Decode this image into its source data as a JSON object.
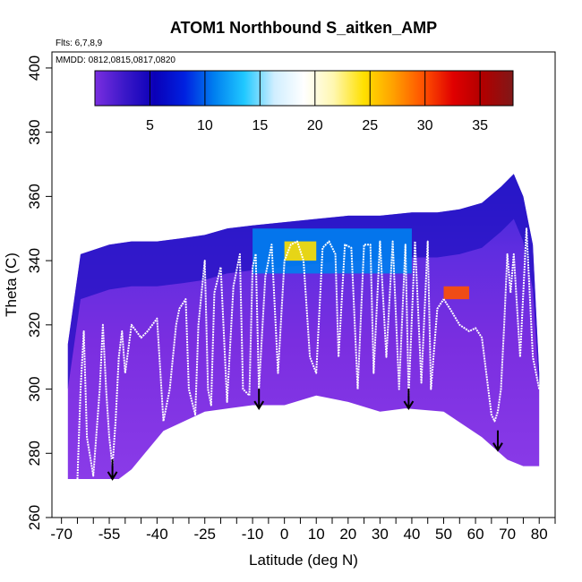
{
  "chart_data": {
    "type": "heatmap",
    "title": "ATOM1 Northbound S_aitken_AMP",
    "xlabel": "Latitude (deg N)",
    "ylabel": "Theta (C)",
    "flights_note": "Flts: 6,7,8,9",
    "dates_note": "MMDD: 0812,0815,0817,0820",
    "xlim": [
      -73,
      85
    ],
    "ylim": [
      260,
      405
    ],
    "x_tick_labels": [
      "-70",
      "-55",
      "-40",
      "-25",
      "-10",
      "0",
      "10",
      "20",
      "30",
      "40",
      "50",
      "60",
      "70",
      "80"
    ],
    "x_tick_values": [
      -70,
      -55,
      -40,
      -25,
      -10,
      0,
      10,
      20,
      30,
      40,
      50,
      60,
      70,
      80
    ],
    "x_minor_ticks": [
      -65,
      -60,
      -50,
      -45,
      -35,
      -30,
      -20,
      -15,
      -5,
      5,
      15,
      25,
      35,
      45,
      55,
      65,
      75,
      85
    ],
    "y_tick_labels": [
      "260",
      "280",
      "300",
      "320",
      "340",
      "360",
      "380",
      "400"
    ],
    "y_tick_values": [
      260,
      280,
      300,
      320,
      340,
      360,
      380,
      400
    ],
    "colorbar": {
      "range": [
        0,
        38
      ],
      "tick_labels": [
        "5",
        "10",
        "15",
        "20",
        "25",
        "30",
        "35"
      ],
      "tick_values": [
        5,
        10,
        15,
        20,
        25,
        30,
        35
      ],
      "color_stops": [
        "#7a2ee0",
        "#3b18c8",
        "#0a00b8",
        "#0020e0",
        "#0080f0",
        "#20c8ff",
        "#d0eeff",
        "#ffffff",
        "#fff7b0",
        "#ffe000",
        "#ffa000",
        "#ff5000",
        "#e00000",
        "#b00000",
        "#801818"
      ]
    },
    "data_top_boundary": [
      [
        -68,
        314
      ],
      [
        -64,
        342
      ],
      [
        -55,
        345
      ],
      [
        -48,
        346
      ],
      [
        -40,
        346
      ],
      [
        -32,
        347
      ],
      [
        -25,
        348
      ],
      [
        -18,
        350
      ],
      [
        -10,
        351
      ],
      [
        0,
        352
      ],
      [
        10,
        353
      ],
      [
        20,
        354
      ],
      [
        30,
        354
      ],
      [
        40,
        355
      ],
      [
        48,
        355
      ],
      [
        55,
        356
      ],
      [
        62,
        358
      ],
      [
        68,
        363
      ],
      [
        72,
        367
      ],
      [
        75,
        360
      ],
      [
        78,
        345
      ],
      [
        80,
        305
      ]
    ],
    "data_bottom_boundary": [
      [
        -68,
        272
      ],
      [
        -62,
        272
      ],
      [
        -57,
        272
      ],
      [
        -52,
        272
      ],
      [
        -48,
        275
      ],
      [
        -38,
        287
      ],
      [
        -25,
        293
      ],
      [
        -10,
        295
      ],
      [
        0,
        295
      ],
      [
        10,
        298
      ],
      [
        20,
        296
      ],
      [
        30,
        293
      ],
      [
        38,
        294
      ],
      [
        50,
        293
      ],
      [
        62,
        285
      ],
      [
        70,
        278
      ],
      [
        75,
        276
      ],
      [
        80,
        276
      ]
    ],
    "high_value_regions": [
      {
        "x": [
          0,
          10
        ],
        "y": [
          340,
          346
        ],
        "value": 24
      },
      {
        "x": [
          50,
          58
        ],
        "y": [
          328,
          332
        ],
        "value": 31
      },
      {
        "x": [
          -10,
          40
        ],
        "y": [
          336,
          350
        ],
        "value": 10
      }
    ],
    "arrows": [
      {
        "lat": -54,
        "theta": 276
      },
      {
        "lat": -8,
        "theta": 298
      },
      {
        "lat": 39,
        "theta": 298
      },
      {
        "lat": 67,
        "theta": 285
      }
    ],
    "flight_profiles": [
      [
        [
          -65,
          272
        ],
        [
          -64,
          300
        ],
        [
          -63,
          318
        ],
        [
          -62,
          285
        ],
        [
          -60,
          273
        ],
        [
          -58,
          300
        ],
        [
          -57,
          320
        ],
        [
          -56,
          300
        ],
        [
          -55,
          285
        ],
        [
          -54,
          276
        ],
        [
          -53,
          290
        ],
        [
          -52,
          310
        ],
        [
          -51,
          318
        ],
        [
          -50,
          305
        ]
      ],
      [
        [
          -50,
          305
        ],
        [
          -48,
          320
        ],
        [
          -45,
          316
        ],
        [
          -43,
          318
        ],
        [
          -40,
          322
        ],
        [
          -38,
          290
        ],
        [
          -36,
          300
        ],
        [
          -34,
          320
        ],
        [
          -33,
          325
        ],
        [
          -31,
          328
        ],
        [
          -30,
          300
        ],
        [
          -28,
          292
        ],
        [
          -27,
          320
        ],
        [
          -25,
          340
        ],
        [
          -24,
          300
        ],
        [
          -23,
          295
        ],
        [
          -22,
          330
        ],
        [
          -20,
          338
        ],
        [
          -18,
          296
        ],
        [
          -16,
          332
        ],
        [
          -14,
          342
        ],
        [
          -13,
          300
        ],
        [
          -11,
          298
        ],
        [
          -10,
          338
        ],
        [
          -9,
          342
        ]
      ],
      [
        [
          -9,
          342
        ],
        [
          -8,
          300
        ],
        [
          -6,
          335
        ],
        [
          -4,
          345
        ],
        [
          -2,
          305
        ],
        [
          0,
          340
        ],
        [
          2,
          345
        ],
        [
          4,
          346
        ],
        [
          6,
          340
        ],
        [
          8,
          310
        ],
        [
          10,
          305
        ],
        [
          12,
          344
        ],
        [
          14,
          346
        ],
        [
          16,
          342
        ],
        [
          17,
          310
        ],
        [
          19,
          345
        ],
        [
          21,
          344
        ],
        [
          23,
          300
        ],
        [
          25,
          345
        ],
        [
          27,
          345
        ],
        [
          28,
          305
        ],
        [
          30,
          346
        ],
        [
          32,
          310
        ],
        [
          34,
          346
        ],
        [
          36,
          300
        ],
        [
          38,
          345
        ],
        [
          39,
          298
        ],
        [
          41,
          346
        ],
        [
          43,
          302
        ],
        [
          45,
          346
        ],
        [
          46,
          300
        ],
        [
          48,
          325
        ],
        [
          50,
          328
        ]
      ],
      [
        [
          50,
          328
        ],
        [
          52,
          325
        ],
        [
          55,
          320
        ],
        [
          58,
          318
        ],
        [
          60,
          319
        ],
        [
          62,
          316
        ],
        [
          64,
          300
        ],
        [
          65,
          292
        ],
        [
          66,
          290
        ],
        [
          67,
          293
        ],
        [
          68,
          300
        ],
        [
          69,
          320
        ],
        [
          70,
          342
        ],
        [
          71,
          330
        ],
        [
          72,
          342
        ],
        [
          74,
          310
        ],
        [
          76,
          350
        ],
        [
          78,
          310
        ],
        [
          80,
          300
        ]
      ]
    ]
  }
}
